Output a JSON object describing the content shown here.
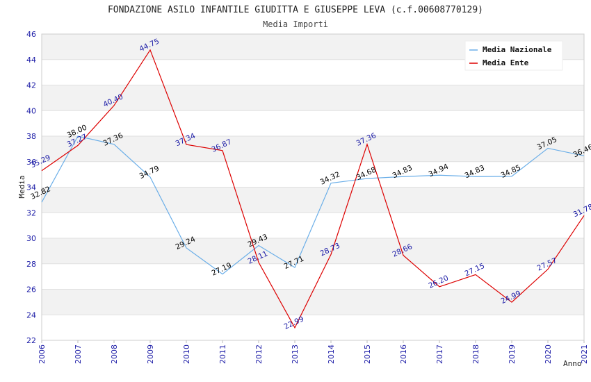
{
  "chart_data": {
    "type": "line",
    "title": "FONDAZIONE ASILO INFANTILE GIUDITTA E GIUSEPPE LEVA (c.f.00608770129)",
    "subtitle": "Media Importi",
    "xlabel": "Anno",
    "ylabel": "Media",
    "ylim": [
      22,
      46
    ],
    "yticks": [
      "22",
      "24",
      "26",
      "28",
      "30",
      "32",
      "34",
      "36",
      "38",
      "40",
      "42",
      "44",
      "46"
    ],
    "x": [
      "2006",
      "2007",
      "2008",
      "2009",
      "2010",
      "2011",
      "2012",
      "2013",
      "2014",
      "2015",
      "2016",
      "2017",
      "2018",
      "2019",
      "2020",
      "2021"
    ],
    "grid": true,
    "legend_position": "top-right",
    "series": [
      {
        "name": "Media Nazionale",
        "color": "#6aaee8",
        "label_color": "#000000",
        "values": [
          32.82,
          38.0,
          37.36,
          34.79,
          29.24,
          27.19,
          29.43,
          27.71,
          34.32,
          34.68,
          34.83,
          34.94,
          34.83,
          34.85,
          37.05,
          36.46
        ],
        "labels": [
          "32.82",
          "38.00",
          "37.36",
          "34.79",
          "29.24",
          "27.19",
          "29.43",
          "27.71",
          "34.32",
          "34.68",
          "34.83",
          "34.94",
          "34.83",
          "34.85",
          "37.05",
          "36.46"
        ]
      },
      {
        "name": "Media Ente",
        "color": "#dd0000",
        "label_color": "#1a1aa6",
        "values": [
          35.29,
          37.27,
          40.4,
          44.75,
          37.34,
          36.87,
          28.11,
          22.99,
          28.73,
          37.36,
          28.66,
          26.2,
          27.15,
          24.99,
          27.57,
          31.78
        ],
        "labels": [
          "35.29",
          "37.27",
          "40.40",
          "44.75",
          "37.34",
          "36.87",
          "28.11",
          "22.99",
          "28.73",
          "37.36",
          "28.66",
          "26.20",
          "27.15",
          "24.99",
          "27.57",
          "31.78"
        ]
      }
    ]
  }
}
